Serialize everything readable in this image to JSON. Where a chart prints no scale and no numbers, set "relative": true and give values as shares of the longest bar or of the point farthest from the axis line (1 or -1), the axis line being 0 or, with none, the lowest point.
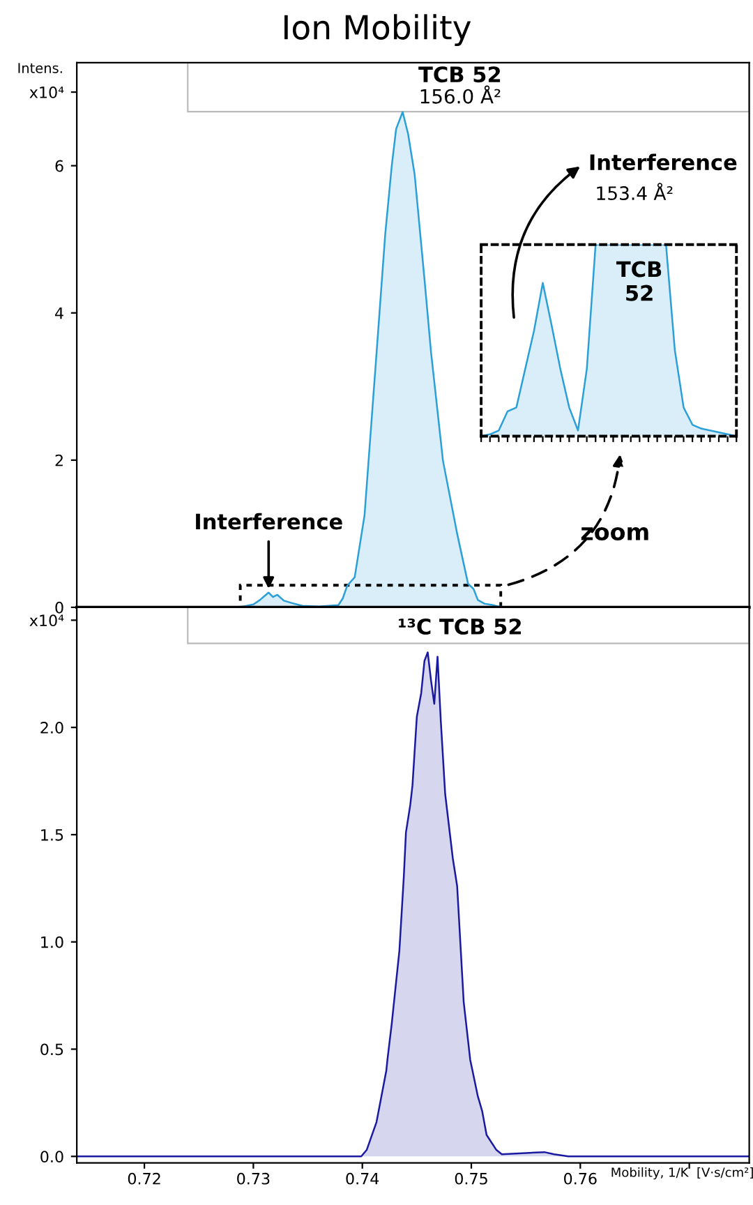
{
  "chart_data": [
    {
      "type": "area",
      "title": "Ion Mobility",
      "ylabel": "Intens.",
      "annotations": [
        "TCB 52",
        "156.0 Å²",
        {
          "text": "Interference",
          "x": 0.7314,
          "y": 0.2
        },
        "zoom"
      ],
      "x": [
        0.7138,
        0.728,
        0.729,
        0.73,
        0.7306,
        0.731,
        0.7314,
        0.7318,
        0.7322,
        0.7328,
        0.7335,
        0.7345,
        0.736,
        0.7378,
        0.7382,
        0.7386,
        0.7393,
        0.7402,
        0.7414,
        0.7421,
        0.7427,
        0.7431,
        0.7437,
        0.7442,
        0.7448,
        0.7457,
        0.7463,
        0.7474,
        0.7487,
        0.7497,
        0.7502,
        0.7506,
        0.7512,
        0.752,
        0.7525,
        0.7535,
        0.7755
      ],
      "series": [
        {
          "color": "#2a9fd8",
          "values": [
            0,
            0,
            0.01,
            0.04,
            0.1,
            0.15,
            0.2,
            0.14,
            0.17,
            0.09,
            0.06,
            0.02,
            0.01,
            0.03,
            0.12,
            0.29,
            0.41,
            1.25,
            3.65,
            5.07,
            6.0,
            6.5,
            6.73,
            6.43,
            5.88,
            4.46,
            3.47,
            1.99,
            1.0,
            0.32,
            0.25,
            0.1,
            0.05,
            0.03,
            0.01,
            0,
            0
          ]
        }
      ],
      "xlim": [
        0.7138,
        0.7755
      ],
      "ylim": [
        0,
        7.4
      ],
      "xticks": [
        {
          "value": 0.72,
          "label": null
        },
        {
          "value": 0.73,
          "label": null
        },
        {
          "value": 0.74,
          "label": null
        },
        {
          "value": 0.75,
          "label": null
        },
        {
          "value": 0.76,
          "label": null
        },
        {
          "value": 0.77,
          "label": null
        }
      ],
      "yticks": [
        0,
        2,
        4,
        6,
        {
          "value": 7,
          "label": "x10⁴"
        }
      ],
      "tick_labels": "y"
    },
    {
      "type": "area",
      "relative": true,
      "annotations": [
        "TCB\n52",
        "Interference",
        "153.4 Å²"
      ],
      "categories": [
        null,
        null,
        null,
        null,
        null,
        null,
        null,
        null,
        null,
        null,
        null,
        null,
        null,
        null,
        null,
        null,
        null,
        null,
        null,
        null,
        null,
        null,
        null,
        null,
        null,
        null,
        null,
        null,
        null,
        null
      ],
      "series": [
        {
          "color": "#2a9fd8",
          "values": [
            0,
            0.01,
            0.03,
            0.13,
            0.15,
            0.35,
            0.55,
            0.8,
            0.58,
            0.35,
            0.15,
            0.03,
            0.35,
            1,
            1,
            1,
            1,
            1,
            1,
            1,
            1,
            1,
            0.45,
            0.15,
            0.06,
            0.04,
            0.03,
            0.02,
            0.01,
            0
          ]
        }
      ]
    },
    {
      "type": "area",
      "xlabel": "Mobility, 1/K  [V·s/cm²]",
      "annotations": [
        "¹³C TCB 52"
      ],
      "x": [
        0.7138,
        0.7399,
        0.7404,
        0.7413,
        0.7422,
        0.7423,
        0.7427,
        0.7434,
        0.7438,
        0.744,
        0.7444,
        0.7446,
        0.745,
        0.7454,
        0.7457,
        0.746,
        0.7463,
        0.7466,
        0.7469,
        0.7472,
        0.7476,
        0.7483,
        0.7487,
        0.7493,
        0.7499,
        0.7506,
        0.751,
        0.7514,
        0.7523,
        0.7528,
        0.7567,
        0.7576,
        0.7589,
        0.7755
      ],
      "series": [
        {
          "color": "#1a1aa0",
          "values": [
            0,
            0,
            0.03,
            0.16,
            0.4,
            0.45,
            0.62,
            0.96,
            1.3,
            1.51,
            1.64,
            1.73,
            2.05,
            2.16,
            2.31,
            2.35,
            2.22,
            2.11,
            2.33,
            2.03,
            1.69,
            1.39,
            1.26,
            0.72,
            0.45,
            0.28,
            0.21,
            0.1,
            0.03,
            0.01,
            0.02,
            0.01,
            0,
            0
          ]
        }
      ],
      "xlim": [
        0.7138,
        0.7755
      ],
      "ylim": [
        -0.03,
        2.56
      ],
      "xticks": [
        {
          "value": 0.72,
          "label": "0.72"
        },
        {
          "value": 0.73,
          "label": "0.73"
        },
        {
          "value": 0.74,
          "label": "0.74"
        },
        {
          "value": 0.75,
          "label": "0.75"
        },
        {
          "value": 0.76,
          "label": "0.76"
        },
        {
          "value": 0.77,
          "label": null
        }
      ],
      "yticks": [
        {
          "value": 0,
          "label": "0.0"
        },
        {
          "value": 0.5,
          "label": "0.5"
        },
        {
          "value": 1,
          "label": "1.0"
        },
        {
          "value": 1.5,
          "label": "1.5"
        },
        {
          "value": 2,
          "label": "2.0"
        },
        {
          "value": 2.5,
          "label": "x10⁴"
        }
      ]
    }
  ]
}
